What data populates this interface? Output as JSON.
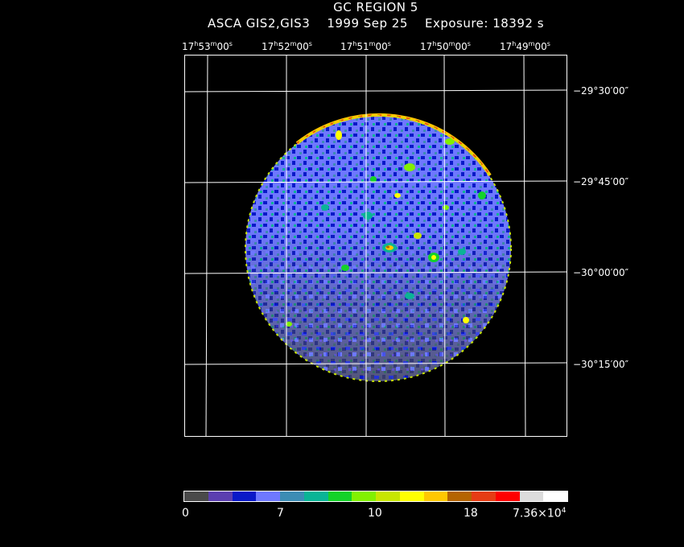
{
  "header": {
    "title": "GC REGION 5",
    "subtitle": "ASCA GIS2,GIS3    1999 Sep 25    Exposure: 18392 s"
  },
  "axes": {
    "ra_labels": [
      {
        "h": "17",
        "m": "53",
        "s": "00"
      },
      {
        "h": "17",
        "m": "52",
        "s": "00"
      },
      {
        "h": "17",
        "m": "51",
        "s": "00"
      },
      {
        "h": "17",
        "m": "50",
        "s": "00"
      },
      {
        "h": "17",
        "m": "49",
        "s": "00"
      }
    ],
    "dec_labels": [
      "−29°30′00″",
      "−29°45′00″",
      "−30°00′00″",
      "−30°15′00″"
    ]
  },
  "colorbar": {
    "colors": [
      "#4a4a4a",
      "#5b3fb0",
      "#0a19c8",
      "#6e78ff",
      "#3c8cb4",
      "#0ab496",
      "#14d228",
      "#82f000",
      "#c8e600",
      "#ffff00",
      "#ffc800",
      "#b46400",
      "#e63c14",
      "#ff0000",
      "#dcdcdc",
      "#ffffff"
    ],
    "labels": [
      {
        "text": "0"
      },
      {
        "text": "7"
      },
      {
        "text": "10"
      },
      {
        "text": "18"
      },
      {
        "text": "7.36×10",
        "exp": "4"
      }
    ]
  }
}
